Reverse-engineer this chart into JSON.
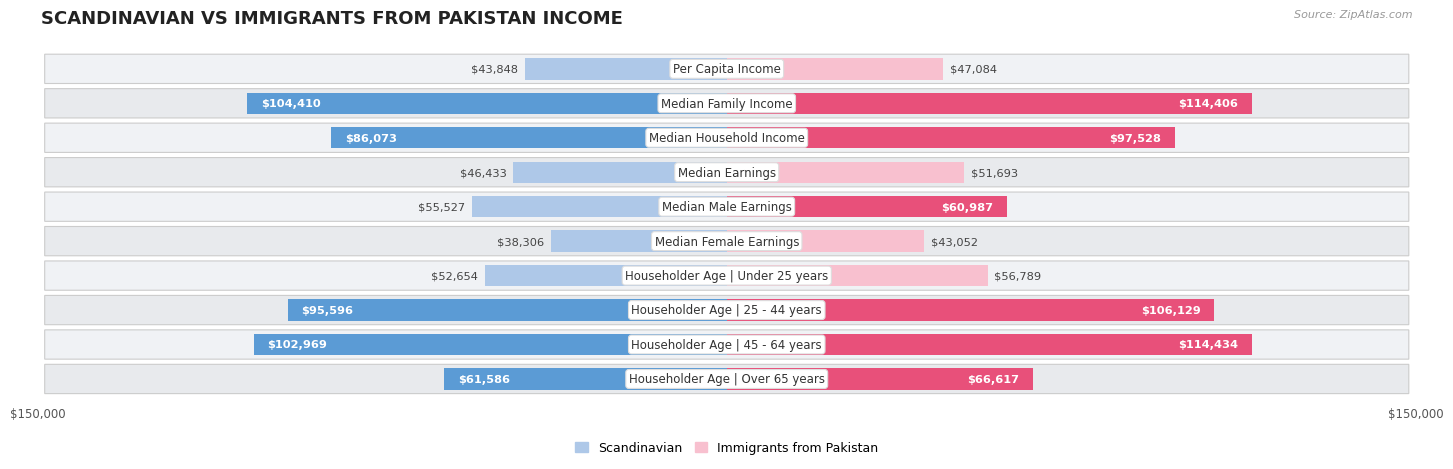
{
  "title": "SCANDINAVIAN VS IMMIGRANTS FROM PAKISTAN INCOME",
  "source": "Source: ZipAtlas.com",
  "categories": [
    "Per Capita Income",
    "Median Family Income",
    "Median Household Income",
    "Median Earnings",
    "Median Male Earnings",
    "Median Female Earnings",
    "Householder Age | Under 25 years",
    "Householder Age | 25 - 44 years",
    "Householder Age | 45 - 64 years",
    "Householder Age | Over 65 years"
  ],
  "scandinavian": [
    43848,
    104410,
    86073,
    46433,
    55527,
    38306,
    52654,
    95596,
    102969,
    61586
  ],
  "pakistan": [
    47084,
    114406,
    97528,
    51693,
    60987,
    43052,
    56789,
    106129,
    114434,
    66617
  ],
  "max_val": 150000,
  "blue_light": "#aec8e8",
  "blue_dark": "#5b9bd5",
  "pink_light": "#f8c0cf",
  "pink_dark": "#e8507a",
  "inside_threshold": 60000,
  "label_blue": "Scandinavian",
  "label_pink": "Immigrants from Pakistan",
  "bar_height": 0.62,
  "row_bg": "#f0f2f5",
  "row_bg2": "#e8eaed",
  "axis_label": "$150,000",
  "title_fontsize": 13,
  "value_fontsize": 8.2,
  "category_fontsize": 8.5,
  "source_fontsize": 8
}
